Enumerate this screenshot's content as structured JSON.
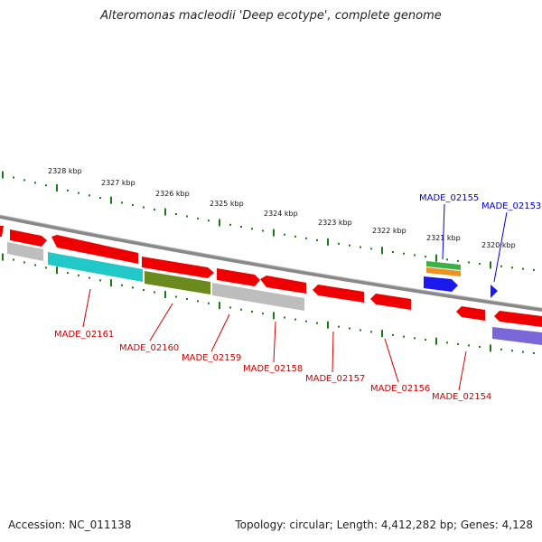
{
  "title": "Alteromonas macleodii 'Deep ecotype', complete genome",
  "footer": {
    "accession": "Accession: NC_011138",
    "summary": "Topology: circular; Length: 4,412,282 bp; Genes: 4,128"
  },
  "colors": {
    "red": "#ee0000",
    "grey": "#bdbdbd",
    "cyan": "#22c8c8",
    "olive": "#6b8a1e",
    "green": "#3cb043",
    "orange": "#f0901e",
    "blue": "#1a1aee",
    "lavender": "#7b68d8",
    "tick": "#1a7a1a",
    "backbone": "#888888",
    "label_red": "#d00000",
    "label_blue": "#0000cc"
  },
  "kbp_labels": [
    "2328 kbp",
    "2327 kbp",
    "2326 kbp",
    "2325 kbp",
    "2324 kbp",
    "2323 kbp",
    "2322 kbp",
    "2321 kbp",
    "2320 kbp"
  ],
  "gene_labels": {
    "made_02161": "MADE_02161",
    "made_02160": "MADE_02160",
    "made_02159": "MADE_02159",
    "made_02158": "MADE_02158",
    "made_02157": "MADE_02157",
    "made_02156": "MADE_02156",
    "made_02154": "MADE_02154",
    "made_02155": "MADE_02155",
    "made_02153": "MADE_02153"
  }
}
